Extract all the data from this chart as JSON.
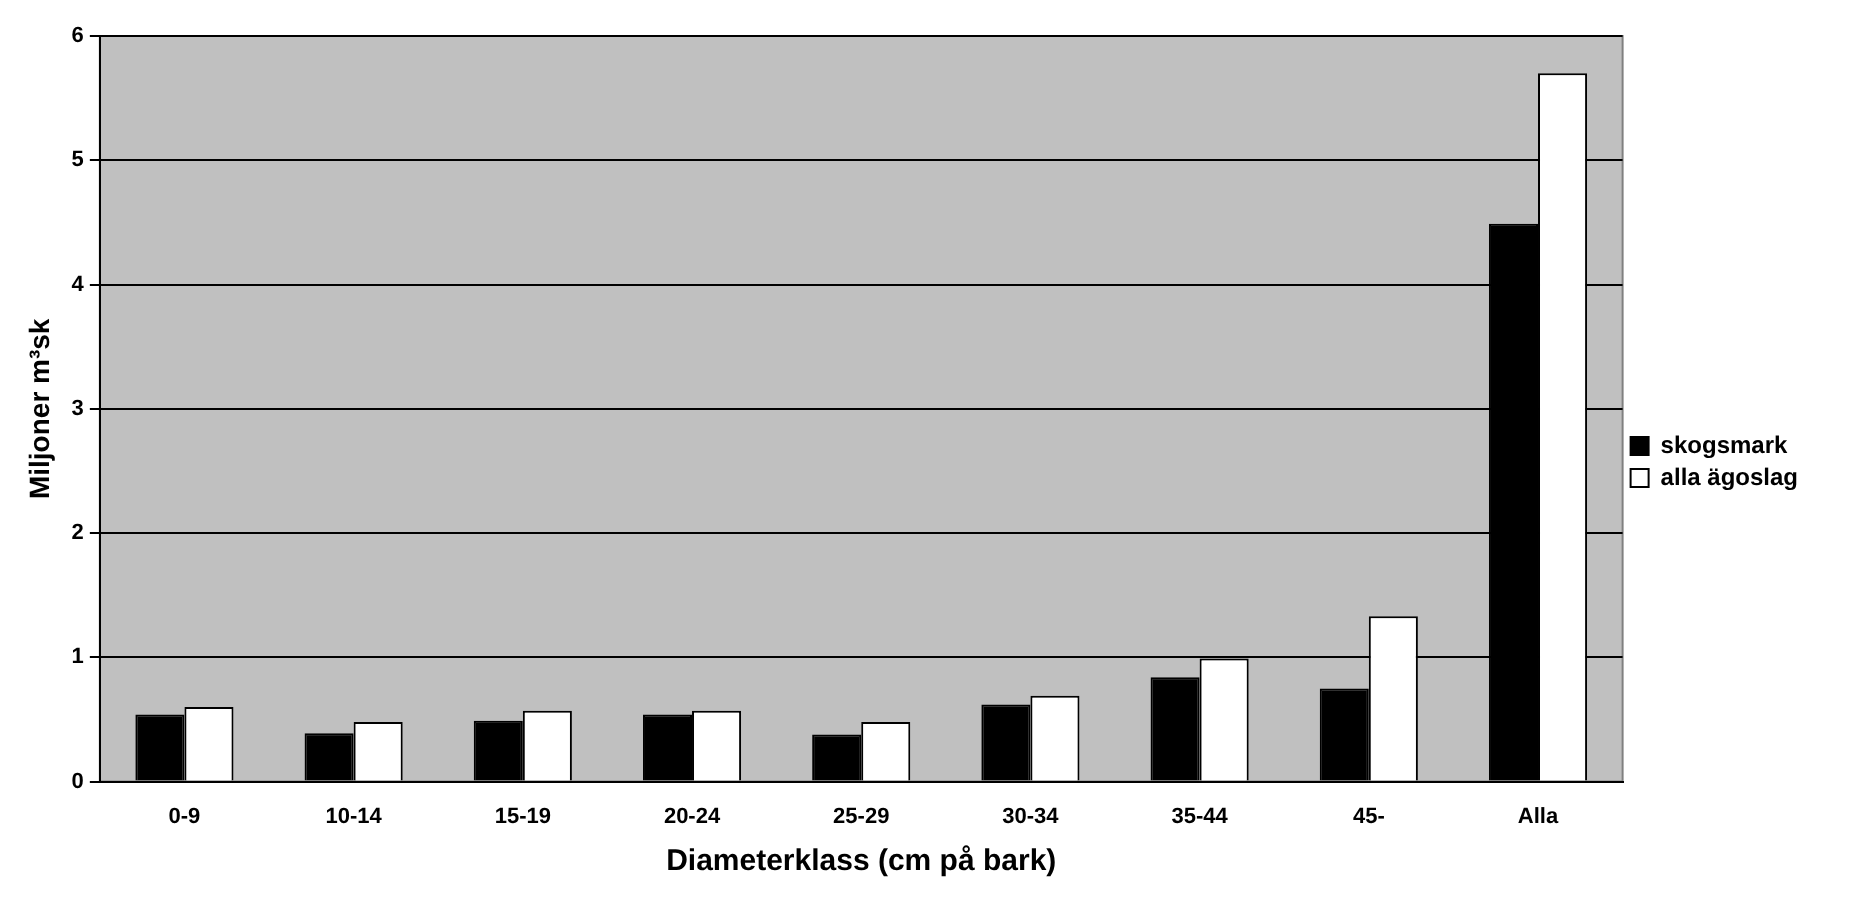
{
  "chart_data": {
    "type": "bar",
    "xlabel": "Diameterklass (cm på bark)",
    "ylabel": "Miljoner m³sk",
    "categories": [
      "0-9",
      "10-14",
      "15-19",
      "20-24",
      "25-29",
      "30-34",
      "35-44",
      "45-",
      "Alla"
    ],
    "series": [
      {
        "name": "skogsmark",
        "color": "#000000",
        "values": [
          0.54,
          0.39,
          0.49,
          0.54,
          0.38,
          0.62,
          0.84,
          0.75,
          4.49
        ]
      },
      {
        "name": "alla ägoslag",
        "color": "#ffffff",
        "values": [
          0.6,
          0.48,
          0.57,
          0.57,
          0.48,
          0.69,
          0.99,
          1.33,
          5.7
        ]
      }
    ],
    "ylim": [
      0,
      6
    ],
    "yticks": [
      0,
      1,
      2,
      3,
      4,
      5,
      6
    ],
    "grid": "y",
    "legend": "right"
  }
}
